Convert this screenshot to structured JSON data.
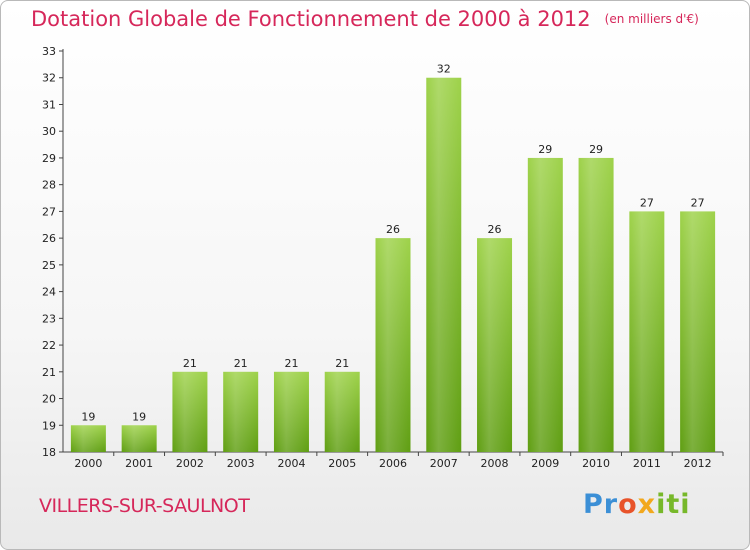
{
  "header": {
    "title": "Dotation Globale de Fonctionnement de 2000 à 2012",
    "subtitle": "(en milliers d'€)"
  },
  "footer": {
    "commune": "VILLERS-SUR-SAULNOT",
    "logo": "Proxiti"
  },
  "colors": {
    "title": "#d6275a",
    "bar_top": "#9ed24a",
    "bar_bottom": "#5f9e12",
    "axis": "#444444"
  },
  "chart_data": {
    "type": "bar",
    "categories": [
      "2000",
      "2001",
      "2002",
      "2003",
      "2004",
      "2005",
      "2006",
      "2007",
      "2008",
      "2009",
      "2010",
      "2011",
      "2012"
    ],
    "values": [
      19,
      19,
      21,
      21,
      21,
      21,
      26,
      32,
      26,
      29,
      29,
      27,
      27
    ],
    "title": "Dotation Globale de Fonctionnement de 2000 à 2012",
    "subtitle": "(en milliers d'€)",
    "xlabel": "",
    "ylabel": "",
    "ylim": [
      18,
      33
    ],
    "yticks": [
      18,
      19,
      20,
      21,
      22,
      23,
      24,
      25,
      26,
      27,
      28,
      29,
      30,
      31,
      32,
      33
    ],
    "grid": false,
    "legend": "none"
  }
}
